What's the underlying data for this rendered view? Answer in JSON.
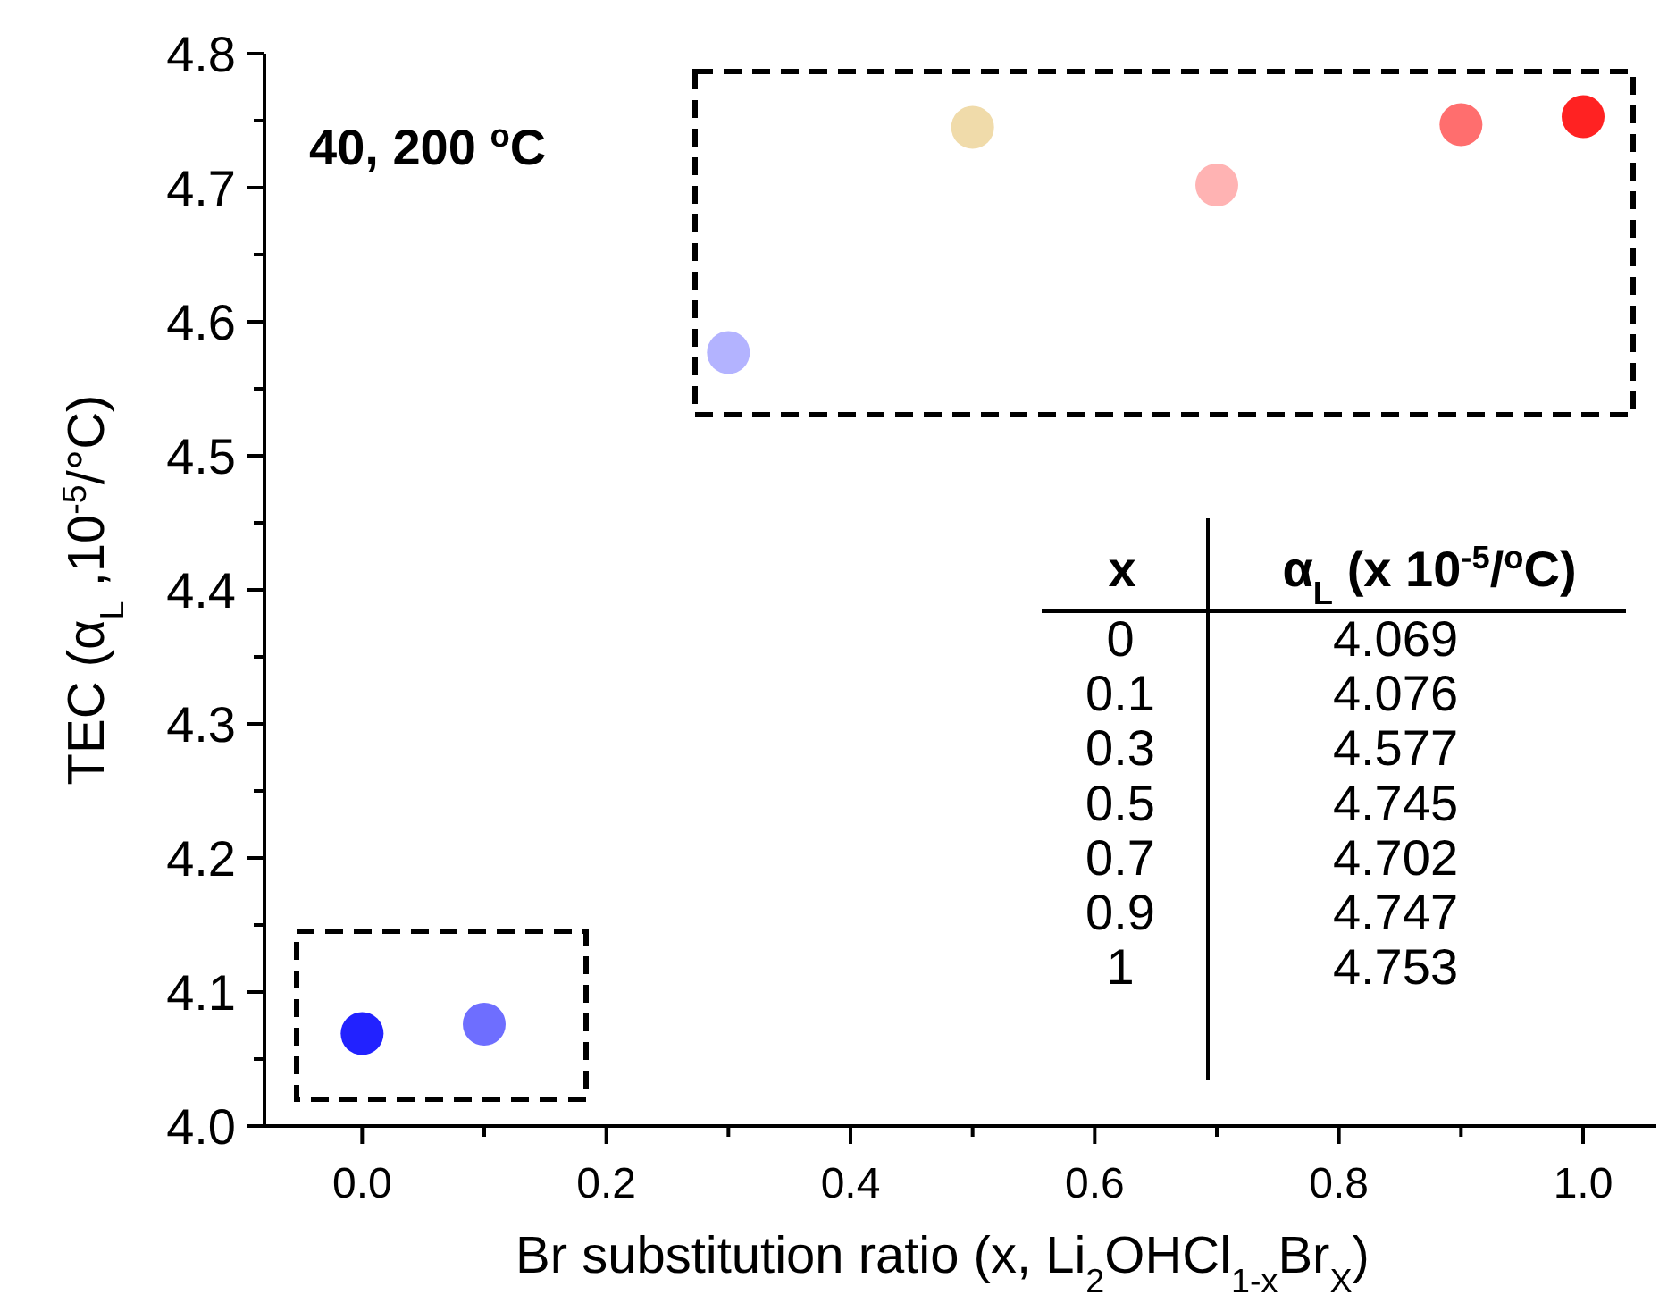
{
  "chart_data": [
    {
      "type": "scatter",
      "xlabel": "Br substitution ratio (x, Li$_{2}$OHCl$_{1-x}$Br$_{X}$)",
      "ylabel": "TEC (α$_{L}$ ,10$^{-5}$/°C)",
      "x": [
        0,
        0.1,
        0.3,
        0.5,
        0.7,
        0.9,
        1
      ],
      "values": [
        4.069,
        4.076,
        4.577,
        4.745,
        4.702,
        4.747,
        4.753
      ],
      "colors": [
        "#2222ff",
        "#6e6eff",
        "#b3b3ff",
        "#f0dbaa",
        "#ffb3b3",
        "#ff6e6e",
        "#ff2222"
      ],
      "xlim": [
        -0.08,
        1.06
      ],
      "xticks": [
        {
          "value": 0,
          "label": "0.0"
        },
        0.2,
        0.4,
        0.6,
        0.8,
        {
          "value": 1,
          "label": "1.0"
        }
      ],
      "ylim": [
        4.0,
        4.8
      ],
      "yticks": [
        {
          "value": 4,
          "label": "4.0"
        },
        4.1,
        4.2,
        4.3,
        4.4,
        4.5,
        4.6,
        4.7,
        4.8
      ],
      "marker": "circle",
      "annotations": [
        "40, 200 $^{o}$C"
      ]
    },
    {
      "type": "other",
      "xlabel": "x",
      "ylabel": "α$_{L}$ (x 10$^{-5}$/$^{o}$C)",
      "categories": [
        "0",
        "0.1",
        "0.3",
        "0.5",
        "0.7",
        "0.9",
        "1"
      ],
      "values": [
        4.069,
        4.076,
        4.577,
        4.745,
        4.702,
        4.747,
        4.753
      ],
      "data_labels": true
    }
  ]
}
